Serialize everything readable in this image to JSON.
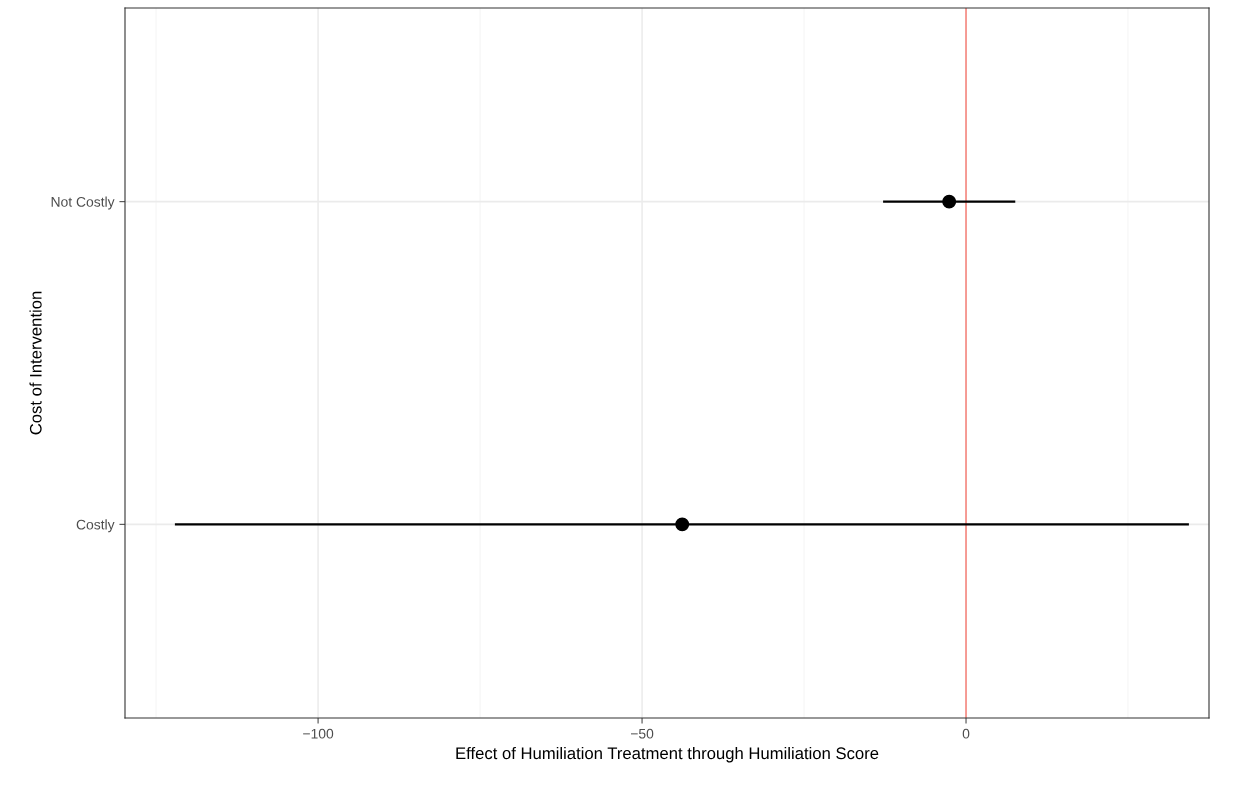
{
  "chart_data": {
    "type": "scatter",
    "orientation": "horizontal",
    "xlabel": "Effect of Humiliation Treatment through Humiliation Score",
    "ylabel": "Cost of Intervention",
    "categories": [
      "Not Costly",
      "Costly"
    ],
    "series": [
      {
        "color": "#000000",
        "values": [
          -2.6,
          -43.8
        ],
        "errors": [
          [
            -12.8,
            7.6
          ],
          [
            -122.1,
            34.4
          ]
        ]
      }
    ],
    "xlim": [
      -129.8,
      37.5
    ],
    "xticks": [
      {
        "value": -100,
        "label": "−100"
      },
      {
        "value": -50,
        "label": "−50"
      },
      0
    ],
    "ref_lines": [
      {
        "axis": "x",
        "value": 0,
        "color": "#f8766d"
      }
    ],
    "grid": true,
    "marker": "circle"
  }
}
